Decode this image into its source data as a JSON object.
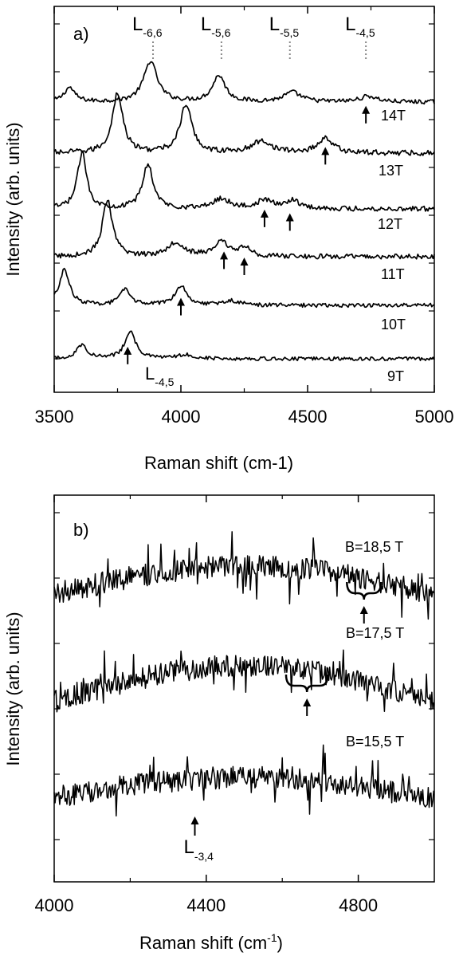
{
  "chart_data": [
    {
      "type": "line",
      "panel_label": "a)",
      "xlabel": "Raman shift (cm-1)",
      "ylabel": "Intensity (arb. units)",
      "xlim": [
        3500,
        5000
      ],
      "x_ticks": [
        3500,
        4000,
        4500,
        5000
      ],
      "grid": false,
      "series": [
        {
          "name": "14T",
          "baseline": 0.05,
          "peaks": [
            [
              3560,
              0.3,
              25
            ],
            [
              3880,
              0.85,
              32
            ],
            [
              4150,
              0.55,
              30
            ],
            [
              4440,
              0.2,
              40
            ],
            [
              4740,
              0.12,
              40
            ]
          ]
        },
        {
          "name": "13T",
          "baseline": 0.0,
          "peaks": [
            [
              3750,
              1.0,
              25
            ],
            [
              4020,
              0.8,
              28
            ],
            [
              4320,
              0.2,
              45
            ],
            [
              4570,
              0.25,
              35
            ]
          ]
        },
        {
          "name": "12T",
          "baseline": 0.0,
          "peaks": [
            [
              3610,
              1.0,
              22
            ],
            [
              3870,
              0.8,
              25
            ],
            [
              4160,
              0.18,
              40
            ],
            [
              4330,
              0.15,
              35
            ],
            [
              4440,
              0.15,
              35
            ]
          ]
        },
        {
          "name": "11T",
          "baseline": 0.0,
          "peaks": [
            [
              3710,
              1.0,
              24
            ],
            [
              3980,
              0.25,
              40
            ],
            [
              4160,
              0.25,
              35
            ],
            [
              4250,
              0.15,
              30
            ]
          ]
        },
        {
          "name": "10T",
          "baseline": 0.0,
          "peaks": [
            [
              3540,
              0.8,
              25
            ],
            [
              3780,
              0.35,
              25
            ],
            [
              4000,
              0.45,
              28
            ],
            [
              4200,
              0.1,
              40
            ]
          ]
        },
        {
          "name": "9T",
          "baseline": 0.0,
          "peaks": [
            [
              3610,
              0.35,
              25
            ],
            [
              3800,
              0.7,
              25
            ],
            [
              4020,
              0.1,
              40
            ]
          ]
        }
      ],
      "top_labels": [
        {
          "main": "L",
          "sub": "-6,6",
          "x": 3890
        },
        {
          "main": "L",
          "sub": "-5,6",
          "x": 4160
        },
        {
          "main": "L",
          "sub": "-5,5",
          "x": 4430
        },
        {
          "main": "L",
          "sub": "-4,5",
          "x": 4730
        }
      ],
      "arrows": [
        {
          "x": 4730,
          "trace": "14T"
        },
        {
          "x": 4570,
          "trace": "13T"
        },
        {
          "x": 4330,
          "trace": "12T"
        },
        {
          "x": 4430,
          "trace": "12T"
        },
        {
          "x": 4170,
          "trace": "11T"
        },
        {
          "x": 4250,
          "trace": "11T"
        },
        {
          "x": 4000,
          "trace": "10T"
        },
        {
          "x": 3790,
          "trace": "9T"
        }
      ],
      "bottom_annotation": {
        "main": "L",
        "sub": "-4,5"
      }
    },
    {
      "type": "line",
      "panel_label": "b)",
      "xlabel": "Raman shift (cm",
      "xlabel_sup": "-1",
      "xlabel_end": ")",
      "ylabel": "Intensity (arb. units)",
      "xlim": [
        4000,
        5000
      ],
      "x_ticks": [
        4000,
        4400,
        4800
      ],
      "grid": false,
      "series": [
        {
          "name": "B=18,5 T"
        },
        {
          "name": "B=17,5 T"
        },
        {
          "name": "B=15,5 T"
        }
      ],
      "annotations": [
        {
          "type": "brace-arrow",
          "x_range": [
            4770,
            4860
          ],
          "trace": "B=18,5 T"
        },
        {
          "type": "brace-arrow",
          "x_range": [
            4610,
            4720
          ],
          "trace": "B=17,5 T"
        },
        {
          "type": "arrow",
          "x": 4370,
          "label_main": "L",
          "label_sub": "-3,4"
        }
      ]
    }
  ]
}
